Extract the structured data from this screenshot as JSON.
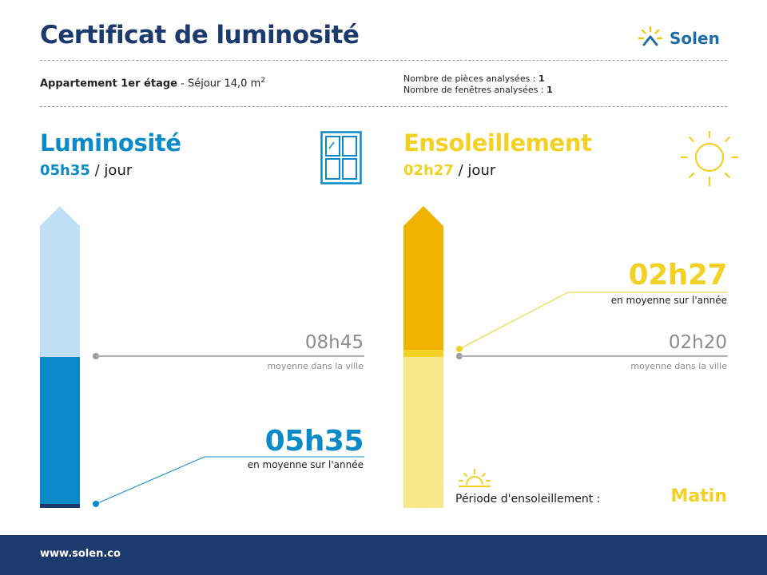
{
  "header": {
    "title": "Certificat de luminosité",
    "brand": "Solen"
  },
  "property": {
    "label": "Appartement 1er étage",
    "separator": " - ",
    "room": "Séjour 14,0 m",
    "area_sup": "2",
    "rooms_label": "Nombre de pièces analysées :",
    "rooms_value": "1",
    "windows_label": "Nombre de fenêtres analysées :",
    "windows_value": "1"
  },
  "luminosite": {
    "title": "Luminosité",
    "daily_value": "05h35",
    "per_day": " / jour",
    "annual_value": "05h35",
    "annual_caption": "en moyenne sur l'année",
    "city_value": "08h45",
    "city_caption": "moyenne dans la ville",
    "icon": "window-icon",
    "color": "#0a8ac9",
    "light_color": "#bfdff7",
    "scale_fraction_annual": 0.35,
    "scale_fraction_city": 0.55
  },
  "ensoleillement": {
    "title": "Ensoleillement",
    "daily_value": "02h27",
    "per_day": " / jour",
    "annual_value": "02h27",
    "annual_caption": "en moyenne sur l'année",
    "city_value": "02h20",
    "city_caption": "moyenne dans la ville",
    "icon": "sun-icon",
    "color": "#f2d024",
    "dark_color": "#f0b400",
    "light_color": "#f8e88a",
    "period_label": "Période d'ensoleillement :",
    "period_value": "Matin",
    "period_icon": "sunrise-icon"
  },
  "footer": {
    "url": "www.solen.co"
  }
}
